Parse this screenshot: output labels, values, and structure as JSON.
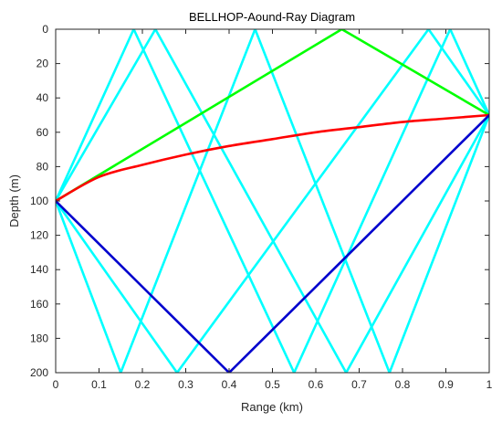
{
  "chart_data": {
    "type": "line",
    "title": "BELLHOP-Aound-Ray Diagram",
    "xlabel": "Range (km)",
    "ylabel": "Depth (m)",
    "xlim": [
      0,
      1
    ],
    "ylim": [
      0,
      200
    ],
    "y_reversed": true,
    "grid": false,
    "x_ticks": [
      0,
      0.1,
      0.2,
      0.3,
      0.4,
      0.5,
      0.6,
      0.7,
      0.8,
      0.9,
      1
    ],
    "x_tick_labels": [
      "0",
      "0.1",
      "0.2",
      "0.3",
      "0.4",
      "0.5",
      "0.6",
      "0.7",
      "0.8",
      "0.9",
      "1"
    ],
    "y_ticks": [
      0,
      20,
      40,
      60,
      80,
      100,
      120,
      140,
      160,
      180,
      200
    ],
    "y_tick_labels": [
      "0",
      "20",
      "40",
      "60",
      "80",
      "100",
      "120",
      "140",
      "160",
      "180",
      "200"
    ],
    "series": [
      {
        "color": "#00ffff",
        "curved": false,
        "points": [
          [
            0,
            100
          ],
          [
            0.18,
            0
          ],
          [
            0.55,
            200
          ],
          [
            0.91,
            0
          ],
          [
            1,
            50
          ]
        ]
      },
      {
        "color": "#00ffff",
        "curved": false,
        "points": [
          [
            0,
            100
          ],
          [
            0.23,
            0
          ],
          [
            0.67,
            200
          ],
          [
            1,
            50
          ]
        ]
      },
      {
        "color": "#00ffff",
        "curved": false,
        "points": [
          [
            0,
            100
          ],
          [
            0.15,
            200
          ],
          [
            0.46,
            0
          ],
          [
            0.77,
            200
          ],
          [
            1,
            50
          ]
        ]
      },
      {
        "color": "#00ffff",
        "curved": false,
        "points": [
          [
            0,
            100
          ],
          [
            0.28,
            200
          ],
          [
            0.86,
            0
          ],
          [
            1,
            50
          ]
        ]
      },
      {
        "color": "#00ff00",
        "curved": false,
        "points": [
          [
            0,
            100
          ],
          [
            0.66,
            0
          ],
          [
            1,
            50
          ]
        ]
      },
      {
        "color": "#ff0000",
        "curved": true,
        "points": [
          [
            0,
            100
          ],
          [
            0.1,
            86
          ],
          [
            0.2,
            79
          ],
          [
            0.3,
            73
          ],
          [
            0.4,
            68
          ],
          [
            0.5,
            64
          ],
          [
            0.6,
            60
          ],
          [
            0.7,
            57
          ],
          [
            0.8,
            54
          ],
          [
            0.9,
            52
          ],
          [
            1,
            50
          ]
        ]
      },
      {
        "color": "#0000cd",
        "curved": false,
        "points": [
          [
            0,
            100
          ],
          [
            0.4,
            200
          ],
          [
            1,
            50
          ]
        ]
      }
    ]
  }
}
